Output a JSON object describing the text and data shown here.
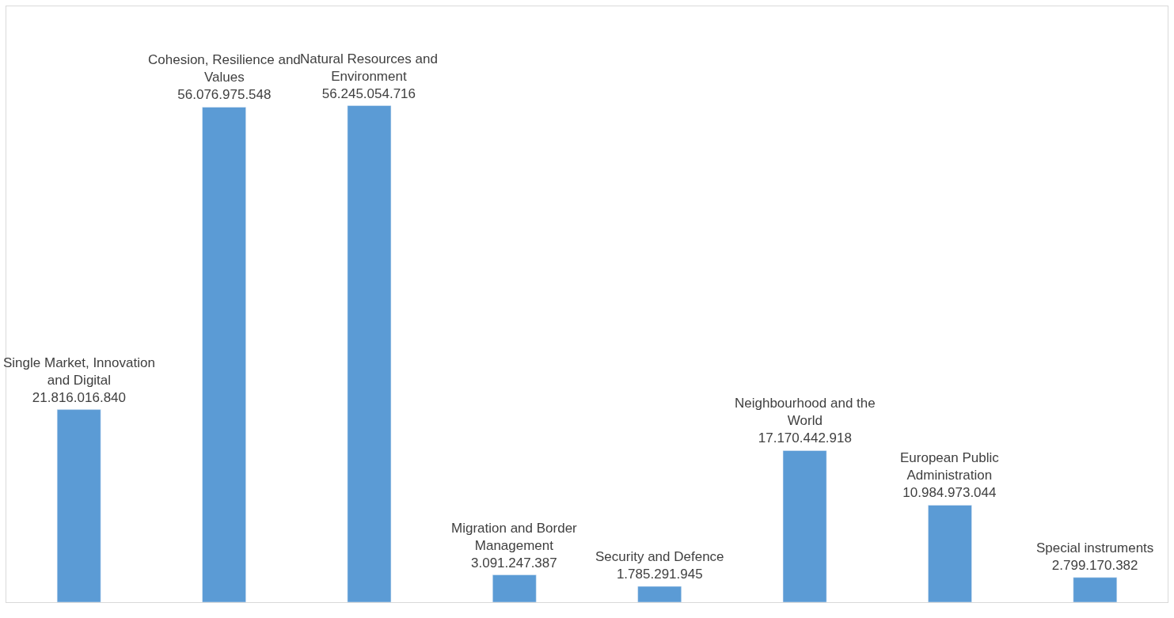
{
  "chart_data": {
    "type": "bar",
    "categories": [
      "Single Market, Innovation and Digital",
      "Cohesion, Resilience and Values",
      "Natural Resources and Environment",
      "Migration and Border Management",
      "Security and Defence",
      "Neighbourhood and the World",
      "European Public Administration",
      "Special instruments"
    ],
    "values": [
      21816016840,
      56076975548,
      56245054716,
      3091247387,
      1785291945,
      17170442918,
      10984973044,
      2799170382
    ],
    "value_labels": [
      "21.816.016.840",
      "56.076.975.548",
      "56.245.054.716",
      "3.091.247.387",
      "1.785.291.945",
      "17.170.442.918",
      "10.984.973.044",
      "2.799.170.382"
    ],
    "color": "#5b9bd5",
    "tick_labels": false
  }
}
